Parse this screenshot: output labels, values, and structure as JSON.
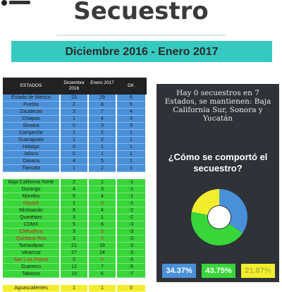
{
  "header": {
    "title": "Secuestro",
    "period": "Diciembre 2016 - Enero 2017"
  },
  "table": {
    "columns": [
      "ESTADOS",
      "Diciembre 2016",
      "Enero 2017",
      "Dif."
    ],
    "rows": [
      {
        "estado": "Estado de México",
        "dic": "23",
        "ene": "29",
        "dif": "6",
        "group": "blue"
      },
      {
        "estado": "Puebla",
        "dic": "2",
        "ene": "8",
        "dif": "6",
        "group": "blue"
      },
      {
        "estado": "Zacatecas",
        "dic": "3",
        "ene": "7",
        "dif": "4",
        "group": "blue"
      },
      {
        "estado": "Chiapas",
        "dic": "1",
        "ene": "4",
        "dif": "3",
        "group": "blue"
      },
      {
        "estado": "Sinaloa",
        "dic": "0",
        "ene": "3",
        "dif": "3",
        "group": "blue"
      },
      {
        "estado": "Campeche",
        "dic": "1",
        "ene": "2",
        "dif": "1",
        "group": "blue"
      },
      {
        "estado": "Guanajuato",
        "dic": "1",
        "ene": "2",
        "dif": "1",
        "group": "blue"
      },
      {
        "estado": "Hidalgo",
        "dic": "0",
        "ene": "1",
        "dif": "1",
        "group": "blue"
      },
      {
        "estado": "Jalisco",
        "dic": "0",
        "ene": "1",
        "dif": "1",
        "group": "blue"
      },
      {
        "estado": "Oaxaca",
        "dic": "4",
        "ene": "5",
        "dif": "1",
        "group": "blue"
      },
      {
        "estado": "Tlaxcala",
        "dic": "1",
        "ene": "2",
        "dif": "1",
        "group": "blue"
      },
      {
        "estado": "",
        "dic": "",
        "ene": "",
        "dif": "",
        "group": "white"
      },
      {
        "estado": "Baja California Norte",
        "dic": "2",
        "ene": "1",
        "dif": "-1",
        "group": "green"
      },
      {
        "estado": "Durango",
        "dic": "4",
        "ene": "3",
        "dif": "-1",
        "group": "green"
      },
      {
        "estado": "Morelos",
        "dic": "5",
        "ene": "4",
        "dif": "-1",
        "group": "green"
      },
      {
        "estado": "Nayarit",
        "dic": "1",
        "ene": "0",
        "dif": "-1",
        "group": "green",
        "red": true
      },
      {
        "estado": "Michoacán",
        "dic": "6",
        "ene": "4",
        "dif": "-2",
        "group": "green"
      },
      {
        "estado": "Querétaro",
        "dic": "3",
        "ene": "1",
        "dif": "-2",
        "group": "green"
      },
      {
        "estado": "CDMX",
        "dic": "9",
        "ene": "6",
        "dif": "-3",
        "group": "green"
      },
      {
        "estado": "Chihuahua",
        "dic": "3",
        "ene": "0",
        "dif": "-3",
        "group": "green",
        "red": true
      },
      {
        "estado": "Quintana Roo",
        "dic": "3",
        "ene": "0",
        "dif": "-3",
        "group": "green",
        "red": true
      },
      {
        "estado": "Tamaulipas",
        "dic": "21",
        "ene": "18",
        "dif": "-3",
        "group": "green"
      },
      {
        "estado": "Veracruz",
        "dic": "27",
        "ene": "24",
        "dif": "-3",
        "group": "green"
      },
      {
        "estado": "San Luis Potosí",
        "dic": "5",
        "ene": "0",
        "dif": "-5",
        "group": "green",
        "red": true
      },
      {
        "estado": "Guerrero",
        "dic": "12",
        "ene": "7",
        "dif": "-5",
        "group": "green"
      },
      {
        "estado": "Tabasco",
        "dic": "13",
        "ene": "6",
        "dif": "-7",
        "group": "green"
      },
      {
        "estado": "",
        "dic": "",
        "ene": "",
        "dif": "",
        "group": "white"
      },
      {
        "estado": "Aguascalientes",
        "dic": "1",
        "ene": "1",
        "dif": "0",
        "group": "yellow"
      }
    ]
  },
  "panel": {
    "info": "Hay 0 secuestros en 7 Estados, se mantienen: Baja California Sur, Sonora y Yucatán",
    "question": "¿Cómo se comportó el secuestro?",
    "chart_data": {
      "type": "pie",
      "series": [
        {
          "value": 34.37,
          "color": "#4a90d9"
        },
        {
          "value": 43.75,
          "color": "#39d63a"
        },
        {
          "value": 21.87,
          "color": "#f2ee2e"
        }
      ]
    },
    "badges": [
      "34.37%",
      "43.75%",
      "21.87%"
    ]
  }
}
